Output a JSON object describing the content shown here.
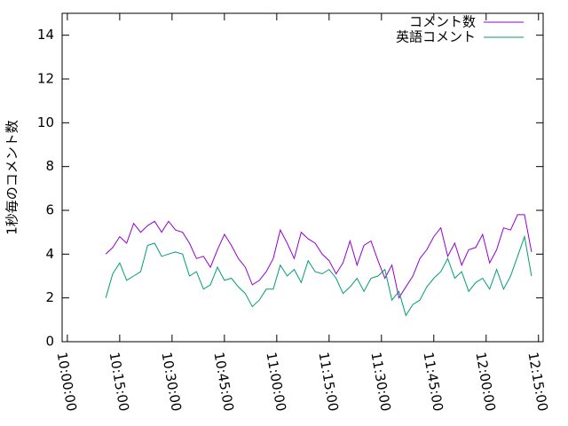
{
  "chart_data": {
    "type": "line",
    "y_label": "1秒毎のコメント数",
    "x": [
      "10:11:00",
      "10:13:00",
      "10:15:00",
      "10:17:00",
      "10:19:00",
      "10:21:00",
      "10:23:00",
      "10:25:00",
      "10:27:00",
      "10:29:00",
      "10:31:00",
      "10:33:00",
      "10:35:00",
      "10:37:00",
      "10:39:00",
      "10:41:00",
      "10:43:00",
      "10:45:00",
      "10:47:00",
      "10:49:00",
      "10:51:00",
      "10:53:00",
      "10:55:00",
      "10:57:00",
      "10:59:00",
      "11:01:00",
      "11:03:00",
      "11:05:00",
      "11:07:00",
      "11:09:00",
      "11:11:00",
      "11:13:00",
      "11:15:00",
      "11:17:00",
      "11:19:00",
      "11:21:00",
      "11:23:00",
      "11:25:00",
      "11:27:00",
      "11:29:00",
      "11:31:00",
      "11:33:00",
      "11:35:00",
      "11:37:00",
      "11:39:00",
      "11:41:00",
      "11:43:00",
      "11:45:00",
      "11:47:00",
      "11:49:00",
      "11:51:00",
      "11:53:00",
      "11:55:00",
      "11:57:00",
      "11:59:00",
      "12:01:00",
      "12:03:00",
      "12:05:00",
      "12:07:00",
      "12:09:00",
      "12:11:00",
      "12:13:00"
    ],
    "series": [
      {
        "name": "コメント数",
        "color": "#9400d3",
        "values": [
          4.0,
          4.3,
          4.8,
          4.5,
          5.4,
          5.0,
          5.3,
          5.5,
          5.0,
          5.5,
          5.1,
          5.0,
          4.5,
          3.8,
          3.9,
          3.4,
          4.2,
          4.9,
          4.4,
          3.8,
          3.4,
          2.6,
          2.8,
          3.2,
          3.8,
          5.1,
          4.5,
          3.8,
          5.0,
          4.7,
          4.5,
          4.0,
          3.7,
          3.1,
          3.6,
          4.6,
          3.5,
          4.4,
          4.6,
          3.7,
          2.9,
          3.5,
          2.0,
          2.5,
          3.0,
          3.8,
          4.2,
          4.8,
          5.2,
          3.9,
          4.5,
          3.5,
          4.2,
          4.3,
          4.9,
          3.6,
          4.2,
          5.2,
          5.1,
          5.8,
          5.8,
          4.1
        ]
      },
      {
        "name": "英語コメント",
        "color": "#009e73",
        "values": [
          2.0,
          3.1,
          3.6,
          2.8,
          3.0,
          3.2,
          4.4,
          4.5,
          3.9,
          4.0,
          4.1,
          4.0,
          3.0,
          3.2,
          2.4,
          2.6,
          3.4,
          2.8,
          2.9,
          2.5,
          2.2,
          1.6,
          1.9,
          2.4,
          2.4,
          3.5,
          3.0,
          3.3,
          2.7,
          3.7,
          3.2,
          3.1,
          3.3,
          2.9,
          2.2,
          2.5,
          2.9,
          2.3,
          2.9,
          3.0,
          3.3,
          1.9,
          2.3,
          1.2,
          1.7,
          1.9,
          2.5,
          2.9,
          3.2,
          3.8,
          2.9,
          3.2,
          2.3,
          2.7,
          2.9,
          2.4,
          3.3,
          2.4,
          3.0,
          3.9,
          4.8,
          3.0
        ]
      }
    ],
    "xlim": [
      "09:58:30",
      "12:16:20"
    ],
    "xticks": [
      "10:00:00",
      "10:15:00",
      "10:30:00",
      "10:45:00",
      "11:00:00",
      "11:15:00",
      "11:30:00",
      "11:45:00",
      "12:00:00",
      "12:15:00"
    ],
    "ylim": [
      0,
      15
    ],
    "yticks": [
      0,
      2,
      4,
      6,
      8,
      10,
      12,
      14
    ],
    "legend": "top-right"
  }
}
